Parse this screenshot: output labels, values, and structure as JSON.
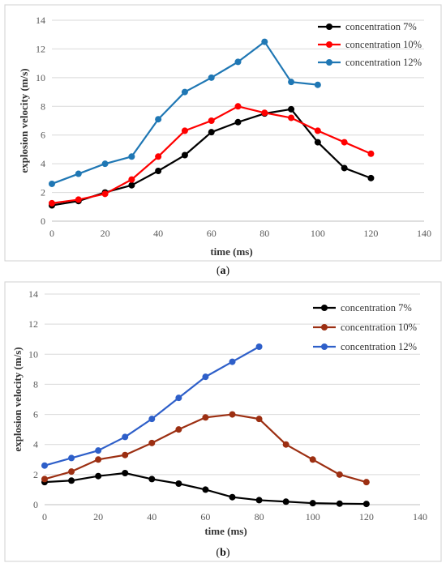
{
  "chart_data": [
    {
      "panel": "a",
      "type": "line",
      "caption": "(a)",
      "xlabel": "time (ms)",
      "ylabel": "explosion velocity (m/s)",
      "xlim": [
        0,
        140
      ],
      "ylim": [
        0,
        14
      ],
      "xticks": [
        0,
        20,
        40,
        60,
        80,
        100,
        120,
        140
      ],
      "yticks": [
        0,
        2,
        4,
        6,
        8,
        10,
        12,
        14
      ],
      "grid": "horizontal",
      "legend_position": "top-right",
      "series": [
        {
          "name": "concentration 7%",
          "color": "#000000",
          "x": [
            0,
            10,
            20,
            30,
            40,
            50,
            60,
            70,
            80,
            90,
            100,
            110,
            120
          ],
          "y": [
            1.1,
            1.4,
            2.0,
            2.5,
            3.5,
            4.6,
            6.2,
            6.9,
            7.5,
            7.8,
            5.5,
            3.7,
            3.0
          ]
        },
        {
          "name": "concentration 10%",
          "color": "#ff0000",
          "x": [
            0,
            10,
            20,
            30,
            40,
            50,
            60,
            70,
            80,
            90,
            100,
            110,
            120
          ],
          "y": [
            1.25,
            1.5,
            1.9,
            2.9,
            4.5,
            6.3,
            7.0,
            8.0,
            7.55,
            7.2,
            6.3,
            5.5,
            4.7
          ]
        },
        {
          "name": "concentration 12%",
          "color": "#1f77b4",
          "x": [
            0,
            10,
            20,
            30,
            40,
            50,
            60,
            70,
            80,
            90,
            100
          ],
          "y": [
            2.6,
            3.3,
            4.0,
            4.5,
            7.1,
            9.0,
            10.0,
            11.1,
            12.5,
            9.7,
            9.5
          ]
        }
      ]
    },
    {
      "panel": "b",
      "type": "line",
      "caption": "(b)",
      "xlabel": "time (ms)",
      "ylabel": "explosion velocity (m/s)",
      "xlim": [
        0,
        140
      ],
      "ylim": [
        0,
        14
      ],
      "xticks": [
        0,
        20,
        40,
        60,
        80,
        100,
        120,
        140
      ],
      "yticks": [
        0,
        2,
        4,
        6,
        8,
        10,
        12,
        14
      ],
      "grid": "horizontal",
      "legend_position": "top-right",
      "series": [
        {
          "name": "concentration 7%",
          "color": "#000000",
          "x": [
            0,
            10,
            20,
            30,
            40,
            50,
            60,
            70,
            80,
            90,
            100,
            110,
            120
          ],
          "y": [
            1.5,
            1.6,
            1.9,
            2.1,
            1.7,
            1.4,
            1.0,
            0.5,
            0.3,
            0.2,
            0.1,
            0.07,
            0.05
          ]
        },
        {
          "name": "concentration 10%",
          "color": "#9c2f12",
          "x": [
            0,
            10,
            20,
            30,
            40,
            50,
            60,
            70,
            80,
            90,
            100,
            110,
            120
          ],
          "y": [
            1.7,
            2.2,
            3.0,
            3.3,
            4.1,
            5.0,
            5.8,
            6.0,
            5.7,
            4.0,
            3.0,
            2.0,
            1.5
          ]
        },
        {
          "name": "concentration 12%",
          "color": "#2e5fc9",
          "x": [
            0,
            10,
            20,
            30,
            40,
            50,
            60,
            70,
            80
          ],
          "y": [
            2.6,
            3.1,
            3.6,
            4.5,
            5.7,
            7.1,
            8.5,
            9.5,
            10.5
          ]
        }
      ]
    }
  ]
}
